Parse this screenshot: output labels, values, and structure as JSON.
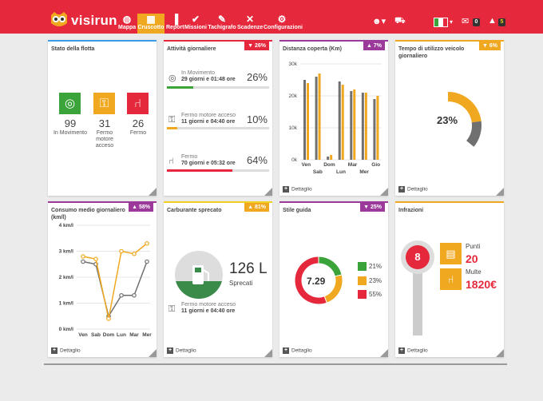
{
  "app": {
    "name": "visirun"
  },
  "nav": [
    {
      "label": "Mappa",
      "icon": "globe-icon"
    },
    {
      "label": "Cruscotto",
      "icon": "grid-icon",
      "active": true
    },
    {
      "label": "Report",
      "icon": "bar-chart-icon"
    },
    {
      "label": "Missioni",
      "icon": "check-icon"
    },
    {
      "label": "Tachigrafo",
      "icon": "wrench-icon"
    },
    {
      "label": "Scadenze",
      "icon": "tools-icon"
    },
    {
      "label": "Configurazioni",
      "icon": "gears-icon"
    }
  ],
  "topright": {
    "messages_count": "0",
    "alerts_count": "5"
  },
  "cards": {
    "fleet": {
      "title": "Stato della flotta",
      "items": [
        {
          "value": "99",
          "label": "In Movimento",
          "color": "#3aa43a",
          "icon": "steering-wheel-icon"
        },
        {
          "value": "31",
          "label": "Fermo motore acceso",
          "color": "#f0a820",
          "icon": "key-icon"
        },
        {
          "value": "26",
          "label": "Fermo",
          "color": "#e6283c",
          "icon": "seat-icon"
        }
      ]
    },
    "daily": {
      "title": "Attività giornaliere",
      "pct": "26%",
      "rows": [
        {
          "label": "In Movimento",
          "time": "29 giorni e 01:48 ore",
          "pct": "26%",
          "fill": 0.26,
          "color": "#3aa43a"
        },
        {
          "label": "Fermo motore acceso",
          "time": "11 giorni e 04:40 ore",
          "pct": "10%",
          "fill": 0.1,
          "color": "#f0a820"
        },
        {
          "label": "Fermo",
          "time": "70 giorni e 05:32 ore",
          "pct": "64%",
          "fill": 0.64,
          "color": "#e6283c"
        }
      ]
    },
    "distance": {
      "title": "Distanza coperta (Km)",
      "pct": "7%",
      "detail": "Dettaglio"
    },
    "usage": {
      "title": "Tempo di utilizzo veicolo giornaliero",
      "pct": "6%",
      "value": "23%",
      "fraction": 0.23,
      "detail": "Dettaglio"
    },
    "consumption": {
      "title": "Consumo medio giornaliero (km/l)",
      "pct": "58%",
      "detail": "Dettaglio"
    },
    "fuel": {
      "title": "Carburante sprecato",
      "pct": "81%",
      "value": "126 L",
      "sub": "Sprecati",
      "row_label": "Fermo motore acceso",
      "row_time": "11 giorni e 04:40 ore",
      "detail": "Dettaglio"
    },
    "style": {
      "title": "Stile guida",
      "pct": "25%",
      "value": "7.29",
      "legend": [
        "21%",
        "23%",
        "55%"
      ],
      "detail": "Dettaglio"
    },
    "infractions": {
      "title": "Infrazioni",
      "value": "8",
      "points_label": "Punti",
      "points": "20",
      "fines_label": "Multe",
      "fines": "1820€",
      "detail": "Dettaglio"
    }
  },
  "chart_data": [
    {
      "type": "bar",
      "title": "Distanza coperta (Km)",
      "categories": [
        "Ven",
        "Sab",
        "Dom",
        "Lun",
        "Mar",
        "Mer",
        "Gio"
      ],
      "ylim": [
        0,
        30000
      ],
      "yticks": [
        "0k",
        "10k",
        "20k",
        "30k"
      ],
      "series": [
        {
          "values": [
            25000,
            26000,
            1000,
            24500,
            21500,
            21000,
            19000
          ],
          "color": "#707070"
        },
        {
          "values": [
            24000,
            27000,
            1500,
            23500,
            22000,
            21000,
            20000
          ],
          "color": "#f0a820"
        }
      ]
    },
    {
      "type": "line",
      "title": "Consumo medio giornaliero (km/l)",
      "categories": [
        "Ven",
        "Sab",
        "Dom",
        "Lun",
        "Mar",
        "Mer"
      ],
      "ylim": [
        0,
        4
      ],
      "yticks": [
        "0 km/l",
        "1 km/l",
        "2 km/l",
        "3 km/l",
        "4 km/l"
      ],
      "series": [
        {
          "values": [
            2.6,
            2.5,
            0.5,
            1.3,
            1.3,
            2.6
          ],
          "color": "#707070"
        },
        {
          "values": [
            2.8,
            2.7,
            0.4,
            3.0,
            2.9,
            3.3
          ],
          "color": "#f0a820"
        }
      ]
    },
    {
      "type": "pie",
      "title": "Stile guida",
      "values": [
        21,
        23,
        55
      ],
      "colors": [
        "#3aa43a",
        "#f0a820",
        "#e6283c"
      ]
    }
  ]
}
